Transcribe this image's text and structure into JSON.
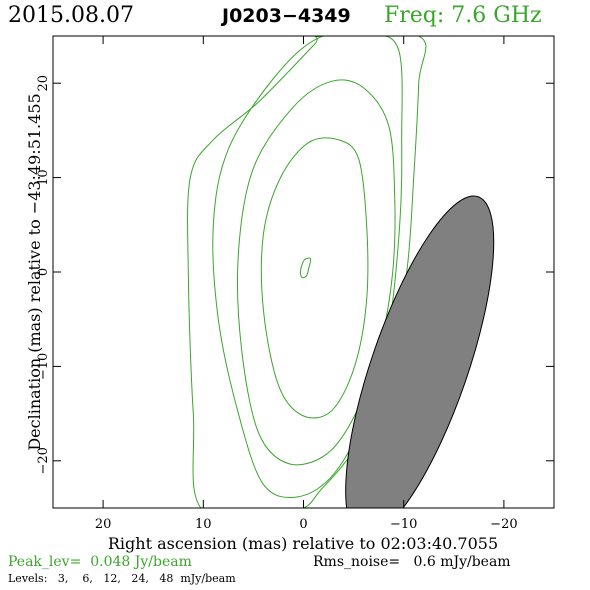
{
  "header": {
    "date": "2015.08.07",
    "source": "J0203−4349",
    "freq": "Freq:  7.6  GHz"
  },
  "footer": {
    "peak": "Peak_lev=  0.048 Jy/beam",
    "rms": "Rms_noise=   0.6 mJy/beam",
    "levels": "Levels:   3,    6,   12,   24,   48  mJy/beam"
  },
  "colors": {
    "contour": "#3aa62b",
    "beam_fill": "#808080",
    "axis": "#000000"
  },
  "chart_data": {
    "type": "contour",
    "xlabel": "Right ascension (mas) relative to 02:03:40.7055",
    "ylabel": "Declination (mas) relative to −43:49:51.455",
    "xlim": [
      25,
      -25
    ],
    "ylim": [
      -25,
      25
    ],
    "x_ticks": [
      20,
      10,
      0,
      -10,
      -20
    ],
    "y_ticks": [
      20,
      10,
      0,
      -10,
      -20
    ],
    "x_tick_labels": [
      "20",
      "10",
      "0",
      "−10",
      "−20"
    ],
    "y_tick_labels": [
      "20",
      "10",
      "0",
      "−10",
      "−20"
    ],
    "contour_levels_mJy": [
      3,
      6,
      12,
      24,
      48
    ],
    "contours": [
      {
        "level": 3,
        "points": [
          [
            -11.5,
            25
          ],
          [
            -11.5,
            20
          ],
          [
            -11,
            10
          ],
          [
            -10.3,
            0
          ],
          [
            -8.5,
            -10
          ],
          [
            -5.5,
            -18
          ],
          [
            -1.8,
            -23
          ],
          [
            1,
            -25.3
          ],
          [
            10,
            -25.3
          ],
          [
            11,
            -15
          ],
          [
            11.5,
            0
          ],
          [
            11.3,
            10
          ],
          [
            9,
            14
          ],
          [
            4.5,
            18
          ],
          [
            -1,
            24
          ],
          [
            -2,
            25
          ]
        ]
      },
      {
        "level": 6,
        "points": [
          [
            -9.5,
            23.5
          ],
          [
            -9.8,
            14
          ],
          [
            -9.6,
            5
          ],
          [
            -8.5,
            -6
          ],
          [
            -6.2,
            -15
          ],
          [
            -3.1,
            -21.3
          ],
          [
            0.5,
            -23.8
          ],
          [
            4,
            -22.5
          ],
          [
            6.5,
            -15
          ],
          [
            8.5,
            -5
          ],
          [
            9,
            5
          ],
          [
            7.5,
            13
          ],
          [
            3,
            20.5
          ],
          [
            -1.5,
            24.8
          ],
          [
            -6.5,
            25.2
          ]
        ]
      },
      {
        "level": 12,
        "points": [
          [
            -8.5,
            15.5
          ],
          [
            -9.1,
            8
          ],
          [
            -8.9,
            0
          ],
          [
            -7.6,
            -8
          ],
          [
            -5.2,
            -15
          ],
          [
            -2.3,
            -19.3
          ],
          [
            1.5,
            -20.3
          ],
          [
            4.5,
            -17
          ],
          [
            6.2,
            -8
          ],
          [
            6.5,
            2
          ],
          [
            5,
            11
          ],
          [
            1,
            17.5
          ],
          [
            -2.8,
            20.2
          ],
          [
            -6,
            19.5
          ]
        ]
      },
      {
        "level": 24,
        "points": [
          [
            -5.5,
            12
          ],
          [
            -6.3,
            5
          ],
          [
            -6.3,
            -3
          ],
          [
            -5.1,
            -10
          ],
          [
            -2.8,
            -14.7
          ],
          [
            0.1,
            -15.2
          ],
          [
            2.5,
            -12
          ],
          [
            4,
            -4
          ],
          [
            4,
            4
          ],
          [
            2.3,
            10
          ],
          [
            -0.5,
            13.7
          ],
          [
            -3.5,
            14
          ]
        ]
      },
      {
        "level": 48,
        "points": [
          [
            -0.7,
            1.4
          ],
          [
            -0.5,
            0.3
          ],
          [
            -0.3,
            -0.4
          ],
          [
            0.1,
            -0.6
          ],
          [
            0.3,
            -0.2
          ],
          [
            0.2,
            0.6
          ],
          [
            -0.1,
            1.3
          ]
        ]
      }
    ],
    "beam": {
      "center": [
        -11.6,
        -10
      ],
      "major_mas": 38,
      "minor_mas": 9.6,
      "pa_deg": 19
    }
  }
}
